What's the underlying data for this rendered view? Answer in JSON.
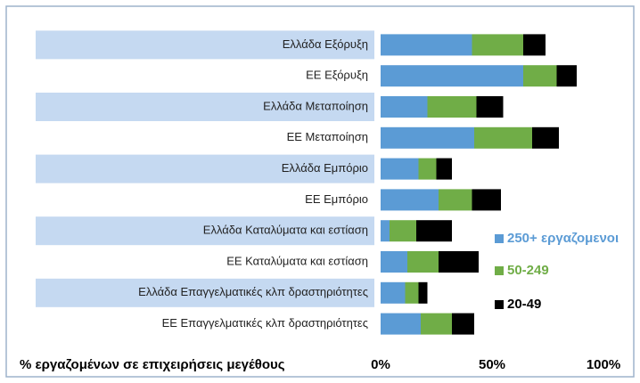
{
  "chart_data": {
    "type": "stacked-barh",
    "xlabel": "% εργαζομένων σε επιχειρήσεις μεγέθους",
    "categories": [
      "Ελλάδα Εξόρυξη",
      "ΕΕ Εξόρυξη",
      "Ελλάδα Μεταποίηση",
      "ΕΕ Μεταποίηση",
      "Ελλάδα Εμπόριο",
      "ΕΕ Εμπόριο",
      "Ελλάδα Καταλύματα και εστίαση",
      "ΕΕ Καταλύματα και εστίαση",
      "Ελλάδα Επαγγελματικές κλπ δραστηριότητες",
      "ΕΕ Επαγγελματικές κλπ δραστηριότητες"
    ],
    "series": [
      {
        "name": "250+ εργαζομενοι",
        "color": "#5b9bd5",
        "values": [
          41,
          64,
          21,
          42,
          17,
          26,
          4,
          12,
          11,
          18
        ]
      },
      {
        "name": "50-249",
        "color": "#70ad47",
        "values": [
          23,
          15,
          22,
          26,
          8,
          15,
          12,
          14,
          6,
          14
        ]
      },
      {
        "name": "20-49",
        "color": "#000000",
        "values": [
          10,
          9,
          12,
          12,
          7,
          13,
          16,
          18,
          4,
          10
        ]
      }
    ],
    "xlim": [
      0,
      100
    ],
    "xticks": [
      {
        "value": 0,
        "label": "0%"
      },
      {
        "value": 50,
        "label": "50%"
      },
      {
        "value": 100,
        "label": "100%"
      }
    ],
    "grid": false,
    "legend": "right"
  }
}
